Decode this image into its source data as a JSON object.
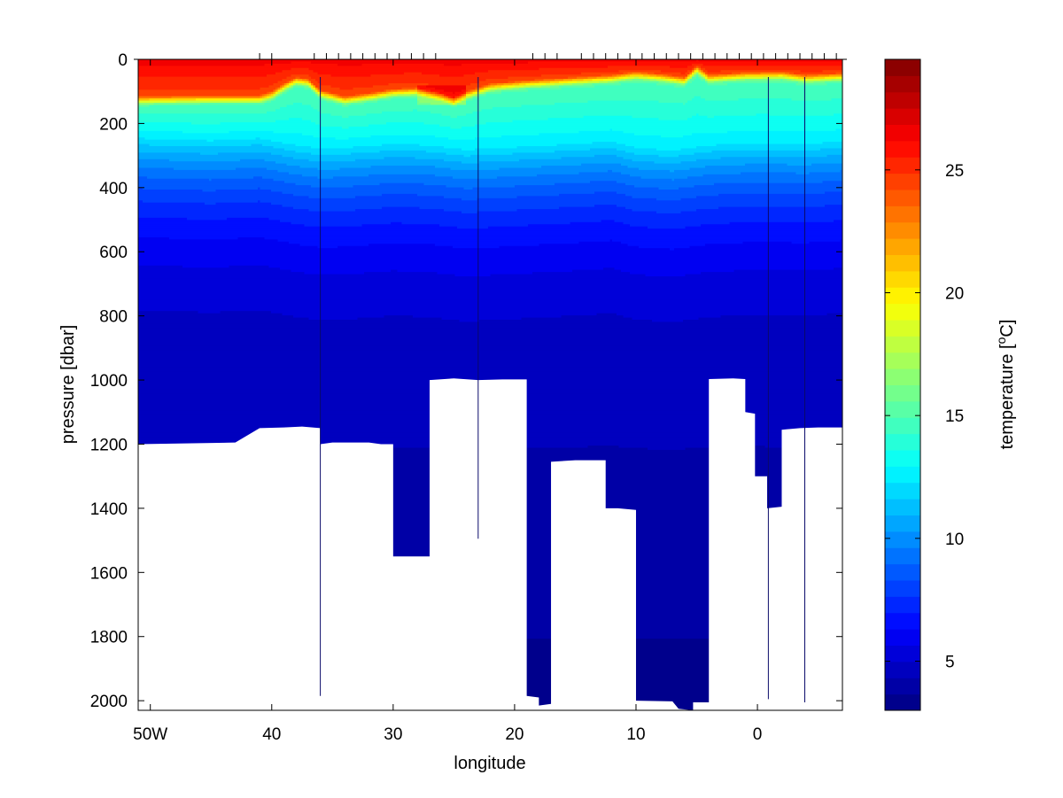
{
  "chart_data": {
    "type": "heatmap",
    "title": "",
    "xlabel": "longitude",
    "ylabel": "pressure [dbar]",
    "xlim": [
      -51,
      7
    ],
    "ylim": [
      0,
      2030
    ],
    "y_reversed": true,
    "x_tick_values": [
      -50,
      -40,
      -30,
      -20,
      -10,
      0
    ],
    "x_tick_labels": [
      "50W",
      "40",
      "30",
      "20",
      "10",
      "0"
    ],
    "y_ticks": [
      0,
      200,
      400,
      600,
      800,
      1000,
      1200,
      1400,
      1600,
      1800,
      2000
    ],
    "grid": false,
    "colormap": "jet",
    "colorbar": {
      "label": "temperature [°C]",
      "label_main": "temperature [",
      "label_sup": "o",
      "label_unit": "C]",
      "range": [
        3,
        29.5
      ],
      "ticks": [
        5,
        10,
        15,
        20,
        25
      ]
    },
    "station_longitudes": [
      -41,
      -40,
      -36.5,
      -35.5,
      -34.5,
      -33.5,
      -32.5,
      -31.5,
      -30.5,
      -29.5,
      -28.5,
      -27.5,
      -26.5,
      -18.5,
      -17.5,
      -16.5,
      -14.5,
      -13.5,
      -12.5,
      -11.5,
      -10.5,
      -9.5,
      -8.5,
      -7.5,
      -6.5,
      -5.5,
      -4.5,
      -3.5,
      -2.5,
      -1.5,
      -0.5,
      0.5,
      1.5,
      2.5,
      3.5,
      4.5,
      5.5,
      6.5
    ],
    "bottom_depth": [
      [
        -51,
        1200
      ],
      [
        -43,
        1195
      ],
      [
        -41,
        1150
      ],
      [
        -39,
        1148
      ],
      [
        -37.5,
        1145
      ],
      [
        -36,
        1150
      ],
      [
        -36,
        1200
      ],
      [
        -35,
        1195
      ],
      [
        -32,
        1195
      ],
      [
        -31,
        1200
      ],
      [
        -30,
        1200
      ],
      [
        -30,
        1550
      ],
      [
        -27,
        1550
      ],
      [
        -27,
        1000
      ],
      [
        -25,
        995
      ],
      [
        -23,
        1000
      ],
      [
        -21,
        998
      ],
      [
        -19,
        998
      ],
      [
        -19,
        1985
      ],
      [
        -18,
        1990
      ],
      [
        -18,
        2015
      ],
      [
        -17,
        2010
      ],
      [
        -17,
        1255
      ],
      [
        -15,
        1250
      ],
      [
        -13.5,
        1250
      ],
      [
        -12.5,
        1250
      ],
      [
        -12.5,
        1400
      ],
      [
        -11.5,
        1400
      ],
      [
        -10,
        1405
      ],
      [
        -10,
        2000
      ],
      [
        -7,
        2002
      ],
      [
        -6.5,
        2025
      ],
      [
        -5.3,
        2030
      ],
      [
        -5.3,
        2005
      ],
      [
        -4,
        2005
      ],
      [
        -4,
        997
      ],
      [
        -2,
        995
      ],
      [
        -1,
        997
      ],
      [
        -1,
        1100
      ],
      [
        -0.2,
        1105
      ],
      [
        -0.2,
        1300
      ],
      [
        0.8,
        1300
      ],
      [
        0.8,
        1400
      ],
      [
        2,
        1395
      ],
      [
        2,
        1155
      ],
      [
        3.5,
        1150
      ],
      [
        5,
        1148
      ],
      [
        7,
        1148
      ]
    ],
    "bottom_needles": [
      [
        -36,
        1985
      ],
      [
        -23,
        1495
      ],
      [
        0.9,
        1995
      ],
      [
        3.9,
        2005
      ],
      [
        7,
        1525
      ]
    ],
    "mixed_layer": [
      [
        -51,
        115
      ],
      [
        -45,
        112
      ],
      [
        -41,
        112
      ],
      [
        -40,
        100
      ],
      [
        -39,
        75
      ],
      [
        -38,
        55
      ],
      [
        -37,
        60
      ],
      [
        -36,
        95
      ],
      [
        -34,
        115
      ],
      [
        -32,
        105
      ],
      [
        -30,
        92
      ],
      [
        -28,
        88
      ],
      [
        -26,
        105
      ],
      [
        -25,
        118
      ],
      [
        -24,
        100
      ],
      [
        -22,
        75
      ],
      [
        -19,
        65
      ],
      [
        -15,
        55
      ],
      [
        -12,
        48
      ],
      [
        -10,
        38
      ],
      [
        -8,
        45
      ],
      [
        -6,
        55
      ],
      [
        -5,
        20
      ],
      [
        -4,
        48
      ],
      [
        -1,
        40
      ],
      [
        2,
        38
      ],
      [
        4,
        48
      ],
      [
        7,
        42
      ]
    ],
    "thermocline": [
      [
        -51,
        240
      ],
      [
        -45,
        248
      ],
      [
        -41,
        240
      ],
      [
        -38,
        262
      ],
      [
        -36,
        272
      ],
      [
        -34,
        270
      ],
      [
        -30,
        258
      ],
      [
        -27,
        262
      ],
      [
        -24,
        276
      ],
      [
        -20,
        268
      ],
      [
        -15,
        258
      ],
      [
        -12,
        250
      ],
      [
        -10,
        270
      ],
      [
        -7,
        278
      ],
      [
        -4,
        262
      ],
      [
        0,
        255
      ],
      [
        4,
        258
      ],
      [
        7,
        250
      ]
    ]
  }
}
